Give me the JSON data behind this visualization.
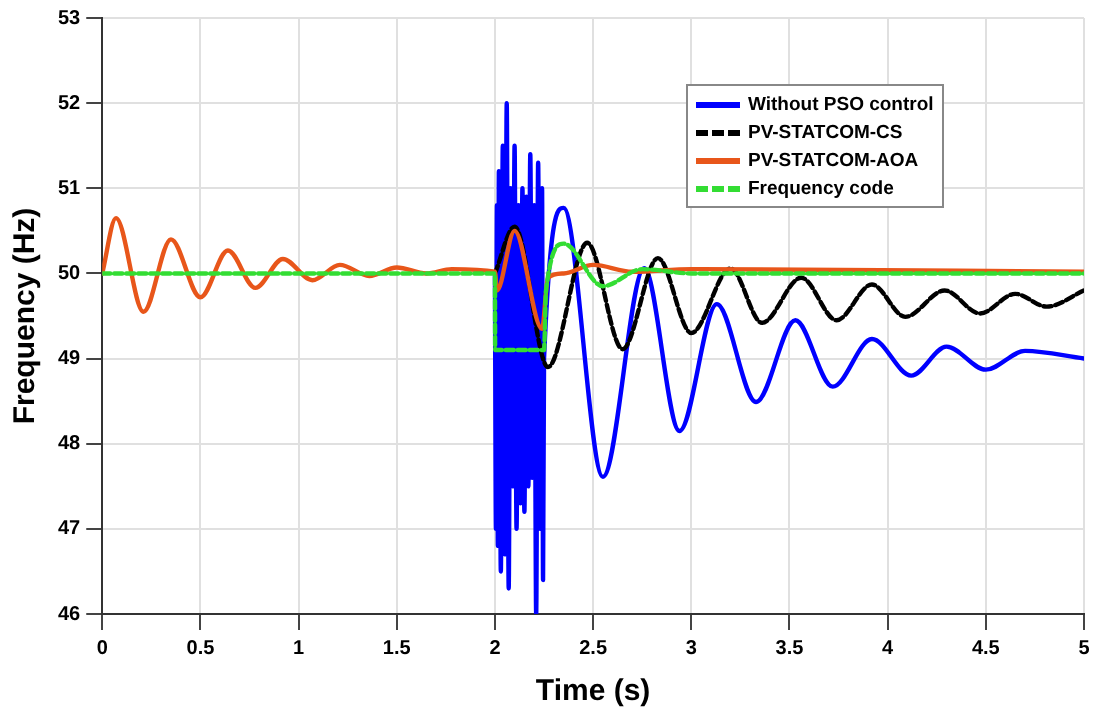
{
  "chart_data": {
    "type": "line",
    "xlabel": "Time (s)",
    "ylabel": "Frequency (Hz)",
    "xlim": [
      0,
      5
    ],
    "ylim": [
      46,
      53
    ],
    "xticks": [
      0,
      0.5,
      1,
      1.5,
      2,
      2.5,
      3,
      3.5,
      4,
      4.5,
      5
    ],
    "yticks": [
      46,
      47,
      48,
      49,
      50,
      51,
      52,
      53
    ],
    "grid": true,
    "legend": "top right",
    "marker": "none",
    "series": [
      {
        "name": "Without PSO control",
        "color": "#0000ff",
        "line_style": "solid",
        "x": [
          2,
          2.005,
          2.01,
          2.015,
          2.02,
          2.03,
          2.04,
          2.05,
          2.06,
          2.07,
          2.08,
          2.09,
          2.1,
          2.11,
          2.12,
          2.13,
          2.14,
          2.15,
          2.16,
          2.17,
          2.18,
          2.19,
          2.2,
          2.21,
          2.22,
          2.23,
          2.24,
          2.245,
          2.25,
          2.35,
          2.55,
          2.76,
          2.94,
          3.13,
          3.33,
          3.53,
          3.72,
          3.92,
          4.12,
          4.3,
          4.5,
          4.7,
          5
        ],
        "values": [
          50,
          47,
          50.8,
          46.8,
          51.2,
          46.5,
          51.5,
          46.7,
          52,
          46.3,
          51,
          47.5,
          51.5,
          47,
          50.8,
          47.3,
          51,
          47.2,
          50.9,
          47.5,
          51.4,
          47.6,
          50.8,
          46,
          51.3,
          47,
          51,
          46.4,
          49,
          50.77,
          47.61,
          50.06,
          48.15,
          49.64,
          48.49,
          49.45,
          48.67,
          49.23,
          48.8,
          49.14,
          48.87,
          49.09,
          49
        ]
      },
      {
        "name": "PV-STATCOM-CS",
        "color": "#000000",
        "line_style": "dashed",
        "x": [
          2,
          2.1,
          2.27,
          2.47,
          2.65,
          2.83,
          3,
          3.2,
          3.36,
          3.56,
          3.74,
          3.92,
          4.09,
          4.29,
          4.47,
          4.65,
          4.81,
          5
        ],
        "values": [
          50,
          50.55,
          48.9,
          50.36,
          49.11,
          50.18,
          49.3,
          50.06,
          49.42,
          49.95,
          49.45,
          49.87,
          49.49,
          49.8,
          49.53,
          49.76,
          49.61,
          49.8
        ]
      },
      {
        "name": "PV-STATCOM-AOA",
        "color": "#e8561a",
        "line_style": "solid",
        "x": [
          0,
          0.07,
          0.21,
          0.35,
          0.5,
          0.64,
          0.78,
          0.92,
          1.07,
          1.21,
          1.36,
          1.5,
          1.65,
          1.78,
          2,
          2.01,
          2.1,
          2.24,
          2.27,
          2.35,
          2.5,
          2.7,
          3,
          5
        ],
        "values": [
          50,
          50.65,
          49.55,
          50.4,
          49.72,
          50.27,
          49.83,
          50.17,
          49.92,
          50.1,
          49.97,
          50.07,
          50,
          50.05,
          50.02,
          49.8,
          50.5,
          49.35,
          49.95,
          50,
          50.1,
          50.02,
          50.05,
          50.02
        ]
      },
      {
        "name": "Frequency code",
        "color": "#33dd33",
        "line_style": "dashed",
        "x": [
          0,
          2,
          2.001,
          2.25,
          2.26,
          2.35,
          2.55,
          2.75,
          3,
          5
        ],
        "values": [
          50,
          50,
          49.1,
          49.1,
          49.8,
          50.35,
          49.85,
          50.05,
          50,
          50
        ]
      }
    ]
  }
}
